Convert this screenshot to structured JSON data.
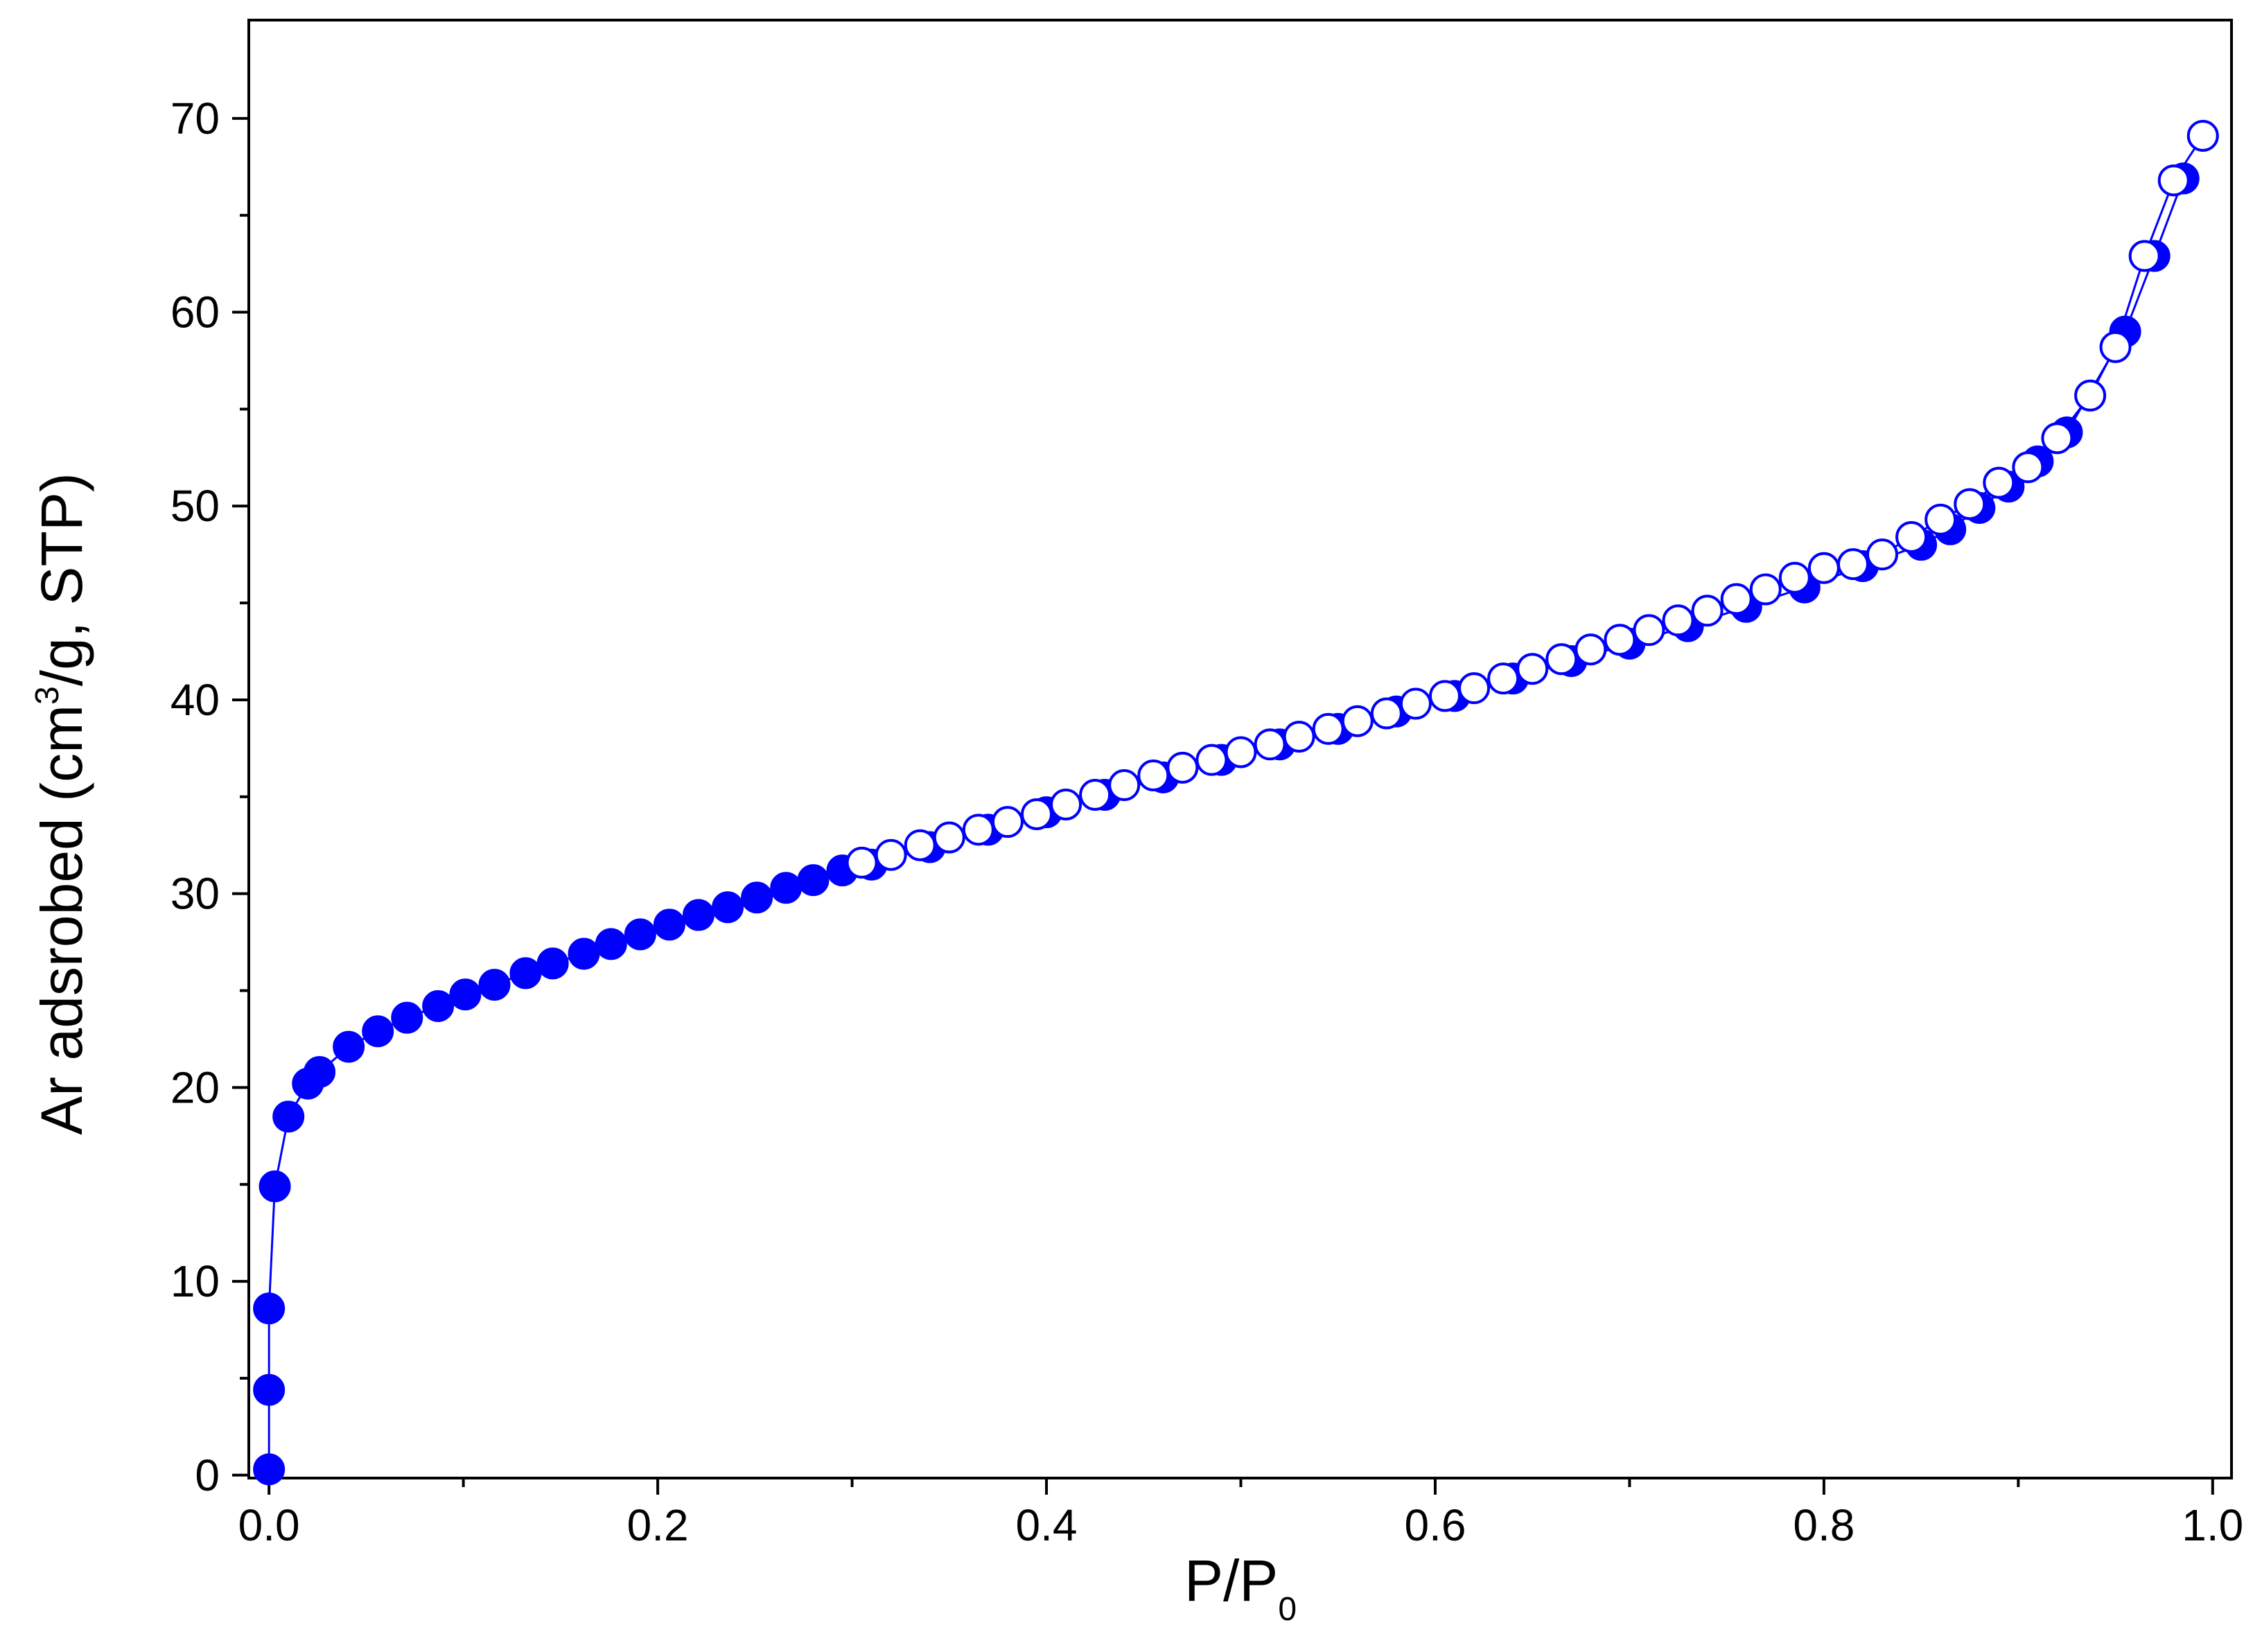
{
  "chart_data": {
    "type": "line",
    "xlabel_parts": [
      "P/P",
      "0"
    ],
    "ylabel_parts": [
      "Ar adsrobed (cm",
      "3",
      "/g, STP)"
    ],
    "xlim": [
      -0.0104,
      1.0097
    ],
    "ylim": [
      -0.15,
      75.07
    ],
    "xticks": [
      {
        "value": 0,
        "label": "0.0"
      },
      0.2,
      0.4,
      0.6,
      0.8,
      {
        "value": 1,
        "label": "1.0"
      }
    ],
    "xminorticks": [
      0.1,
      0.3,
      0.5,
      0.7,
      0.9
    ],
    "yticks": [
      0,
      10,
      20,
      30,
      40,
      50,
      60,
      70
    ],
    "yminorticks": [
      5,
      15,
      25,
      35,
      45,
      55,
      65
    ],
    "series": [
      {
        "color": "#0000ff",
        "marker": "filled",
        "x": [
          0.0,
          0.0,
          0.0,
          0.003,
          0.01,
          0.02,
          0.026,
          0.041,
          0.056,
          0.071,
          0.087,
          0.101,
          0.116,
          0.132,
          0.146,
          0.162,
          0.176,
          0.191,
          0.206,
          0.221,
          0.236,
          0.251,
          0.266,
          0.28,
          0.295,
          0.31,
          0.34,
          0.37,
          0.4,
          0.43,
          0.46,
          0.49,
          0.52,
          0.55,
          0.58,
          0.61,
          0.64,
          0.67,
          0.7,
          0.73,
          0.76,
          0.79,
          0.82,
          0.85,
          0.865,
          0.88,
          0.895,
          0.91,
          0.925,
          0.955,
          0.97,
          0.985
        ],
        "values": [
          0.3,
          4.4,
          8.6,
          14.9,
          18.5,
          20.2,
          20.8,
          22.1,
          22.9,
          23.6,
          24.2,
          24.8,
          25.3,
          25.9,
          26.4,
          26.9,
          27.4,
          27.9,
          28.4,
          28.9,
          29.3,
          29.8,
          30.3,
          30.7,
          31.2,
          31.5,
          32.4,
          33.3,
          34.2,
          35.1,
          36.0,
          36.9,
          37.7,
          38.5,
          39.4,
          40.2,
          41.1,
          42.0,
          42.9,
          43.8,
          44.8,
          45.8,
          46.9,
          48.0,
          48.8,
          49.9,
          51.0,
          52.3,
          53.8,
          59.0,
          62.9,
          66.9
        ]
      },
      {
        "color": "#0000ff",
        "marker": "open",
        "x": [
          0.995,
          0.98,
          0.965,
          0.95,
          0.937,
          0.92,
          0.905,
          0.89,
          0.875,
          0.86,
          0.845,
          0.83,
          0.815,
          0.8,
          0.785,
          0.77,
          0.755,
          0.74,
          0.725,
          0.71,
          0.695,
          0.68,
          0.665,
          0.65,
          0.635,
          0.62,
          0.605,
          0.59,
          0.575,
          0.56,
          0.545,
          0.53,
          0.515,
          0.5,
          0.485,
          0.47,
          0.455,
          0.44,
          0.425,
          0.41,
          0.395,
          0.38,
          0.365,
          0.35,
          0.335,
          0.32,
          0.305
        ],
        "values": [
          69.1,
          66.8,
          62.9,
          58.2,
          55.7,
          53.5,
          52.0,
          51.2,
          50.1,
          49.3,
          48.4,
          47.5,
          47.0,
          46.8,
          46.3,
          45.7,
          45.2,
          44.6,
          44.1,
          43.6,
          43.1,
          42.6,
          42.1,
          41.6,
          41.1,
          40.6,
          40.2,
          39.8,
          39.3,
          38.9,
          38.5,
          38.1,
          37.7,
          37.3,
          36.9,
          36.5,
          36.1,
          35.6,
          35.1,
          34.6,
          34.1,
          33.7,
          33.3,
          32.9,
          32.5,
          32.0,
          31.6
        ]
      }
    ]
  }
}
